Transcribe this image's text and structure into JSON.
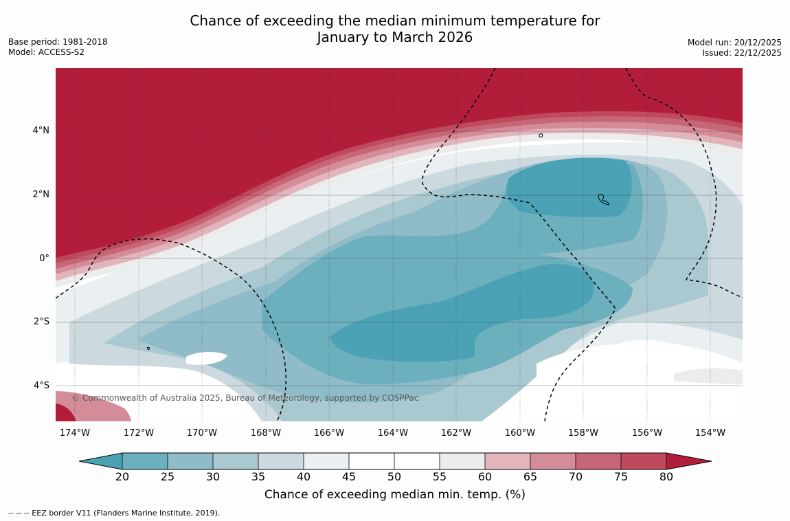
{
  "title": {
    "line1": "Chance of exceeding the median minimum temperature for",
    "line2": "January to March 2026"
  },
  "meta_left": {
    "base_period": "Base period: 1981-2018",
    "model": "Model: ACCESS-S2"
  },
  "meta_right": {
    "model_run": "Model run: 20/12/2025",
    "issued": "Issued: 22/12/2025"
  },
  "map": {
    "credit": "© Commonwealth of Australia 2025, Bureau of Meteorology, supported by COSPPac",
    "lat_labels": [
      "4°N",
      "2°N",
      "0°",
      "2°S",
      "4°S"
    ],
    "lon_labels": [
      "174°W",
      "172°W",
      "170°W",
      "168°W",
      "166°W",
      "164°W",
      "162°W",
      "160°W",
      "158°W",
      "156°W",
      "154°W"
    ]
  },
  "colorbar": {
    "ticks": [
      "20",
      "25",
      "30",
      "35",
      "40",
      "45",
      "50",
      "55",
      "60",
      "65",
      "70",
      "75",
      "80"
    ],
    "label": "Chance of exceeding median min. temp. (%)",
    "colors": {
      "below20": "#4aa2b4",
      "c20_25": "#6cafbd",
      "c25_30": "#8fbcc8",
      "c30_35": "#aac8cf",
      "c35_40": "#ccdadf",
      "c40_45": "#eaf0f2",
      "c45_50": "#ffffff",
      "c50_55": "#ffffff",
      "c55_60": "#ececec",
      "c60_65": "#e2b5bd",
      "c65_70": "#d48c98",
      "c70_75": "#c66676",
      "c75_80": "#bf4a5c",
      "above80": "#b21e3a"
    }
  },
  "footnote": "--  --  -- EEZ border V11 (Flanders Marine Institute, 2019)."
}
